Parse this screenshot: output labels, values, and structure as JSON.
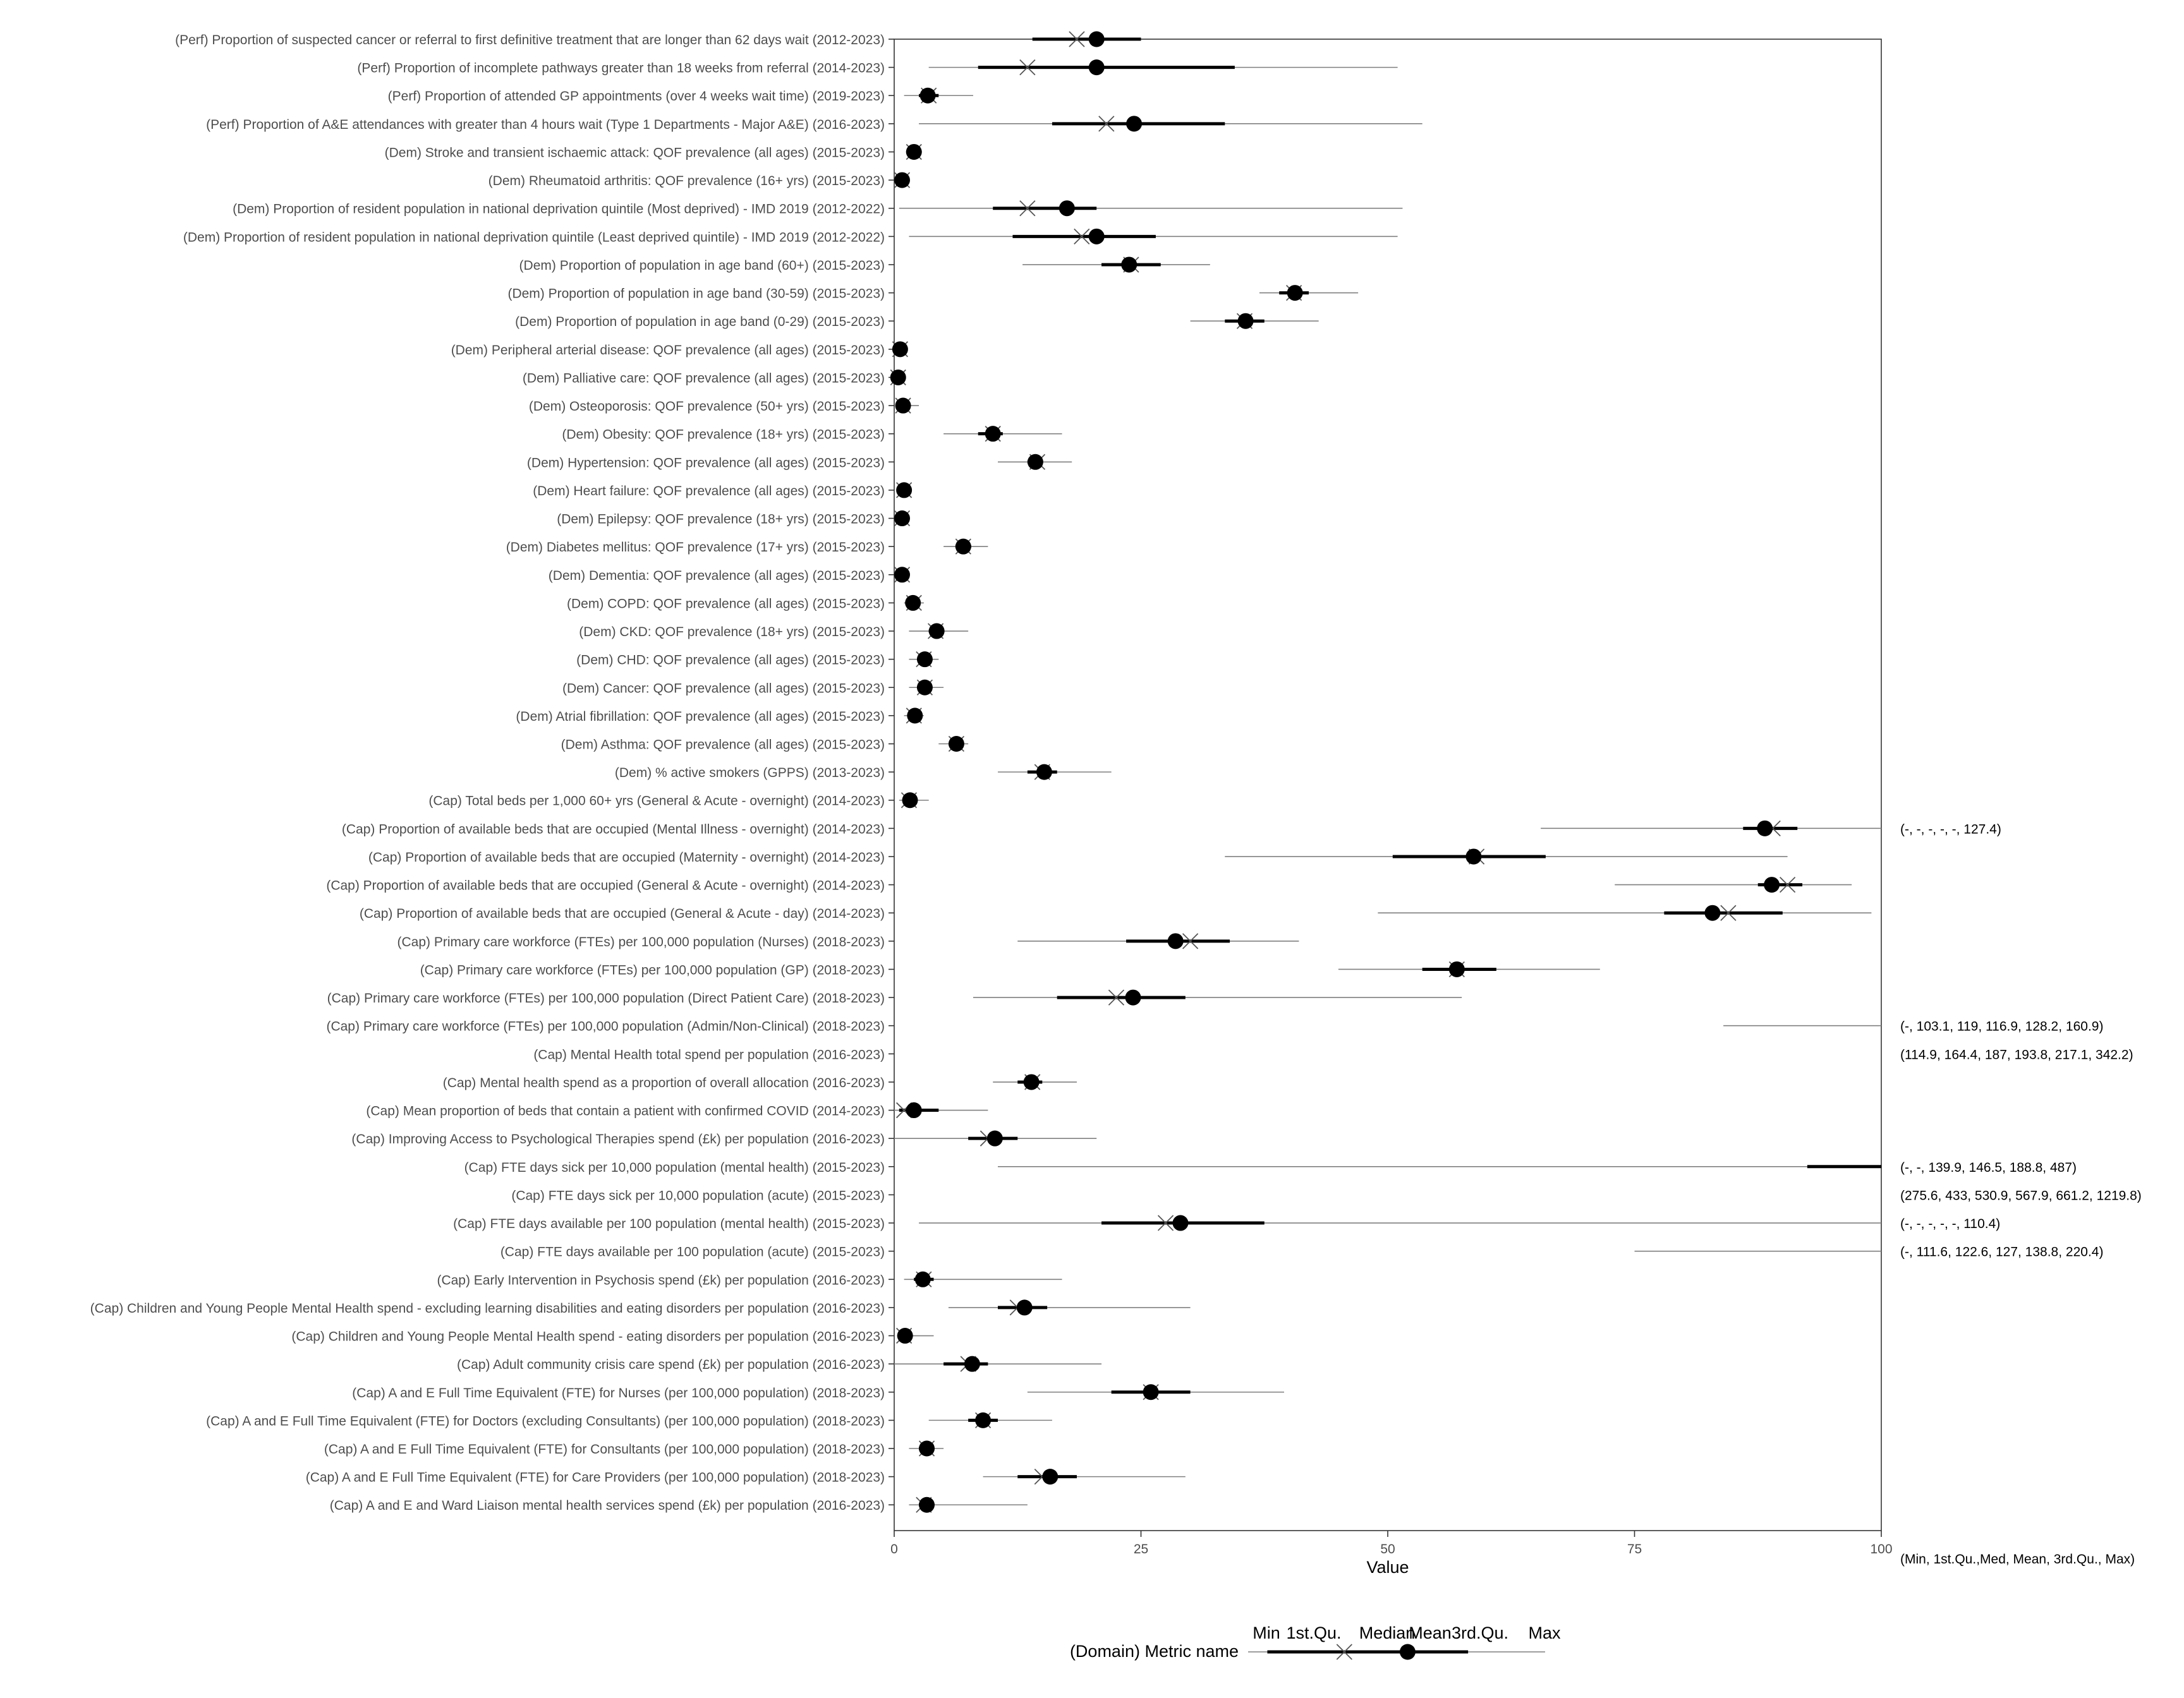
{
  "chart_data": {
    "type": "boxplot-summary",
    "title": "",
    "xlabel": "Value",
    "ylabel": "",
    "xlim": [
      0,
      100
    ],
    "x_ticks": [
      0,
      25,
      50,
      75,
      100
    ],
    "x_tick_labels": [
      "0",
      "25",
      "50",
      "75",
      "100"
    ],
    "summary_header": "(Min, 1st.Qu.,Med, Mean, 3rd.Qu., Max)",
    "grid": false,
    "legend": {
      "placement": "bottom",
      "title": "(Domain) Metric name",
      "labels": [
        "Min",
        "1st.Qu.",
        "Median",
        "Mean",
        "3rd.Qu.",
        "Max"
      ],
      "example": {
        "min": 0.4,
        "q1": 0.47,
        "med": 0.75,
        "mean": 0.98,
        "q3": 1.2,
        "max": 1.48
      }
    },
    "metrics": [
      {
        "label": "(Perf) Proportion of suspected cancer or referral to first definitive treatment that are longer than 62 days wait (2012-2023)",
        "min": 14,
        "q1": 14,
        "med": 18.5,
        "mean": 20.5,
        "q3": 25,
        "max": 25
      },
      {
        "label": "(Perf) Proportion of incomplete pathways greater than 18 weeks from referral (2014-2023)",
        "min": 3.5,
        "q1": 8.5,
        "med": 13.5,
        "mean": 20.5,
        "q3": 34.5,
        "max": 51
      },
      {
        "label": "(Perf) Proportion of attended GP appointments (over 4 weeks wait time) (2019-2023)",
        "min": 1,
        "q1": 2.5,
        "med": 3.5,
        "mean": 3.4,
        "q3": 4.5,
        "max": 8
      },
      {
        "label": "(Perf) Proportion of A&E attendances with greater than 4 hours wait (Type 1 Departments - Major A&E) (2016-2023)",
        "min": 2.5,
        "q1": 16,
        "med": 21.5,
        "mean": 24.3,
        "q3": 33.5,
        "max": 53.5
      },
      {
        "label": "(Dem) Stroke and transient ischaemic attack: QOF prevalence (all ages) (2015-2023)",
        "min": 1.2,
        "q1": 1.7,
        "med": 2,
        "mean": 2,
        "q3": 2.3,
        "max": 2.8
      },
      {
        "label": "(Dem) Rheumatoid arthritis: QOF prevalence (16+ yrs) (2015-2023)",
        "min": 0.5,
        "q1": 0.7,
        "med": 0.8,
        "mean": 0.8,
        "q3": 0.9,
        "max": 1.1
      },
      {
        "label": "(Dem) Proportion of resident population in national deprivation quintile (Most deprived) - IMD 2019 (2012-2022)",
        "min": 0.5,
        "q1": 10,
        "med": 13.5,
        "mean": 17.5,
        "q3": 20.5,
        "max": 51.5
      },
      {
        "label": "(Dem) Proportion of resident population in national deprivation quintile (Least deprived quintile) - IMD 2019 (2012-2022)",
        "min": 1.5,
        "q1": 12,
        "med": 19,
        "mean": 20.5,
        "q3": 26.5,
        "max": 51
      },
      {
        "label": "(Dem) Proportion of population in age band (60+) (2015-2023)",
        "min": 13,
        "q1": 21,
        "med": 24,
        "mean": 23.8,
        "q3": 27,
        "max": 32
      },
      {
        "label": "(Dem) Proportion of population in age band (30-59) (2015-2023)",
        "min": 37,
        "q1": 39,
        "med": 40.5,
        "mean": 40.6,
        "q3": 42,
        "max": 47
      },
      {
        "label": "(Dem) Proportion of population in age band (0-29) (2015-2023)",
        "min": 30,
        "q1": 33.5,
        "med": 35.5,
        "mean": 35.6,
        "q3": 37.5,
        "max": 43
      },
      {
        "label": "(Dem) Peripheral arterial disease: QOF prevalence (all ages) (2015-2023)",
        "min": 0.2,
        "q1": 0.5,
        "med": 0.6,
        "mean": 0.6,
        "q3": 0.8,
        "max": 1
      },
      {
        "label": "(Dem) Palliative care: QOF prevalence (all ages) (2015-2023)",
        "min": 0.1,
        "q1": 0.3,
        "med": 0.4,
        "mean": 0.4,
        "q3": 0.5,
        "max": 0.8
      },
      {
        "label": "(Dem) Osteoporosis: QOF prevalence (50+ yrs) (2015-2023)",
        "min": 0.2,
        "q1": 0.6,
        "med": 0.9,
        "mean": 0.9,
        "q3": 1.2,
        "max": 2.5
      },
      {
        "label": "(Dem) Obesity: QOF prevalence (18+ yrs) (2015-2023)",
        "min": 5,
        "q1": 8.5,
        "med": 10,
        "mean": 10,
        "q3": 11,
        "max": 17
      },
      {
        "label": "(Dem) Hypertension: QOF prevalence (all ages) (2015-2023)",
        "min": 10.5,
        "q1": 13.5,
        "med": 14.5,
        "mean": 14.3,
        "q3": 15,
        "max": 18
      },
      {
        "label": "(Dem) Heart failure: QOF prevalence (all ages) (2015-2023)",
        "min": 0.5,
        "q1": 0.8,
        "med": 1,
        "mean": 1,
        "q3": 1.2,
        "max": 1.6
      },
      {
        "label": "(Dem) Epilepsy: QOF prevalence (18+ yrs) (2015-2023)",
        "min": 0.5,
        "q1": 0.7,
        "med": 0.8,
        "mean": 0.8,
        "q3": 0.9,
        "max": 1.1
      },
      {
        "label": "(Dem) Diabetes mellitus: QOF prevalence (17+ yrs) (2015-2023)",
        "min": 5,
        "q1": 6.2,
        "med": 7,
        "mean": 7,
        "q3": 7.8,
        "max": 9.5
      },
      {
        "label": "(Dem) Dementia: QOF prevalence (all ages) (2015-2023)",
        "min": 0.4,
        "q1": 0.6,
        "med": 0.8,
        "mean": 0.8,
        "q3": 0.9,
        "max": 1.2
      },
      {
        "label": "(Dem) COPD: QOF prevalence (all ages) (2015-2023)",
        "min": 1,
        "q1": 1.5,
        "med": 2,
        "mean": 1.9,
        "q3": 2.3,
        "max": 3
      },
      {
        "label": "(Dem) CKD: QOF prevalence (18+ yrs) (2015-2023)",
        "min": 1.5,
        "q1": 3.5,
        "med": 4.2,
        "mean": 4.3,
        "q3": 5,
        "max": 7.5
      },
      {
        "label": "(Dem) CHD: QOF prevalence (all ages) (2015-2023)",
        "min": 1.5,
        "q1": 2.5,
        "med": 3,
        "mean": 3.1,
        "q3": 3.6,
        "max": 4.5
      },
      {
        "label": "(Dem) Cancer: QOF prevalence (all ages) (2015-2023)",
        "min": 1.5,
        "q1": 2.5,
        "med": 3.1,
        "mean": 3.1,
        "q3": 3.7,
        "max": 5
      },
      {
        "label": "(Dem) Atrial fibrillation: QOF prevalence (all ages) (2015-2023)",
        "min": 1,
        "q1": 1.6,
        "med": 2,
        "mean": 2.1,
        "q3": 2.4,
        "max": 3
      },
      {
        "label": "(Dem) Asthma: QOF prevalence (all ages) (2015-2023)",
        "min": 4.5,
        "q1": 5.8,
        "med": 6.3,
        "mean": 6.3,
        "q3": 6.8,
        "max": 7.5
      },
      {
        "label": "(Dem) % active smokers (GPPS) (2013-2023)",
        "min": 10.5,
        "q1": 13.5,
        "med": 15,
        "mean": 15.2,
        "q3": 16.5,
        "max": 22
      },
      {
        "label": "(Cap) Total beds per 1,000 60+ yrs (General & Acute - overnight) (2014-2023)",
        "min": 0.5,
        "q1": 1,
        "med": 1.5,
        "mean": 1.6,
        "q3": 2,
        "max": 3.5
      },
      {
        "label": "(Cap) Proportion of available beds that are occupied (Mental Illness - overnight) (2014-2023)",
        "min": 65.5,
        "q1": 86,
        "med": 89,
        "mean": 88.2,
        "q3": 91.5,
        "max": 100,
        "overflow_text": "(-, -, -, -, -, 127.4)"
      },
      {
        "label": "(Cap) Proportion of available beds that are occupied (Maternity - overnight) (2014-2023)",
        "min": 33.5,
        "q1": 50.5,
        "med": 59,
        "mean": 58.7,
        "q3": 66,
        "max": 90.5
      },
      {
        "label": "(Cap) Proportion of available beds that are occupied (General & Acute - overnight) (2014-2023)",
        "min": 73,
        "q1": 87.5,
        "med": 90.5,
        "mean": 88.9,
        "q3": 92,
        "max": 97
      },
      {
        "label": "(Cap) Proportion of available beds that are occupied (General & Acute - day) (2014-2023)",
        "min": 49,
        "q1": 78,
        "med": 84.5,
        "mean": 82.9,
        "q3": 90,
        "max": 99
      },
      {
        "label": "(Cap) Primary care workforce (FTEs) per 100,000 population (Nurses) (2018-2023)",
        "min": 12.5,
        "q1": 23.5,
        "med": 30,
        "mean": 28.5,
        "q3": 34,
        "max": 41
      },
      {
        "label": "(Cap) Primary care workforce (FTEs) per 100,000 population (GP) (2018-2023)",
        "min": 45,
        "q1": 53.5,
        "med": 57,
        "mean": 57,
        "q3": 61,
        "max": 71.5
      },
      {
        "label": "(Cap) Primary care workforce (FTEs) per 100,000 population (Direct Patient Care) (2018-2023)",
        "min": 8,
        "q1": 16.5,
        "med": 22.5,
        "mean": 24.2,
        "q3": 29.5,
        "max": 57.5
      },
      {
        "label": "(Cap) Primary care workforce (FTEs) per 100,000 population (Admin/Non-Clinical) (2018-2023)",
        "min": 84,
        "q1": null,
        "med": null,
        "mean": null,
        "q3": null,
        "max": 100,
        "overflow_text": "(-, 103.1, 119, 116.9, 128.2, 160.9)"
      },
      {
        "label": "(Cap) Mental Health total spend per population (2016-2023)",
        "min": null,
        "q1": null,
        "med": null,
        "mean": null,
        "q3": null,
        "max": null,
        "overflow_text": "(114.9, 164.4, 187, 193.8, 217.1, 342.2)"
      },
      {
        "label": "(Cap) Mental health spend as a proportion of overall allocation (2016-2023)",
        "min": 10,
        "q1": 12.5,
        "med": 14,
        "mean": 13.9,
        "q3": 15,
        "max": 18.5
      },
      {
        "label": "(Cap) Mean proportion of beds that contain a patient with confirmed COVID (2014-2023)",
        "min": 0,
        "q1": 0.5,
        "med": 1,
        "mean": 2,
        "q3": 4.5,
        "max": 9.5
      },
      {
        "label": "(Cap) Improving Access to Psychological Therapies spend (£k) per population (2016-2023)",
        "min": 0,
        "q1": 7.5,
        "med": 9.5,
        "mean": 10.2,
        "q3": 12.5,
        "max": 20.5
      },
      {
        "label": "(Cap) FTE days sick per 10,000 population (mental health) (2015-2023)",
        "min": 10.5,
        "q1": 92.5,
        "med": null,
        "mean": null,
        "q3": 100,
        "max": 100,
        "overflow_text": "(-, -, 139.9, 146.5, 188.8, 487)"
      },
      {
        "label": "(Cap) FTE days sick per 10,000 population (acute) (2015-2023)",
        "min": null,
        "q1": null,
        "med": null,
        "mean": null,
        "q3": null,
        "max": null,
        "overflow_text": "(275.6, 433, 530.9, 567.9, 661.2, 1219.8)"
      },
      {
        "label": "(Cap) FTE days available per 100 population (mental health) (2015-2023)",
        "min": 2.5,
        "q1": 21,
        "med": 27.5,
        "mean": 29,
        "q3": 37.5,
        "max": 100,
        "overflow_text": "(-, -, -, -, -, 110.4)"
      },
      {
        "label": "(Cap) FTE days available per 100 population (acute) (2015-2023)",
        "min": 75,
        "q1": null,
        "med": null,
        "mean": null,
        "q3": null,
        "max": 100,
        "overflow_text": "(-, 111.6, 122.6, 127, 138.8, 220.4)"
      },
      {
        "label": "(Cap) Early Intervention in Psychosis spend (£k) per population (2016-2023)",
        "min": 1,
        "q1": 2,
        "med": 3,
        "mean": 2.9,
        "q3": 4,
        "max": 17
      },
      {
        "label": "(Cap) Children and Young People Mental Health spend - excluding learning disabilities and eating disorders per population (2016-2023)",
        "min": 5.5,
        "q1": 10.5,
        "med": 12.5,
        "mean": 13.2,
        "q3": 15.5,
        "max": 30
      },
      {
        "label": "(Cap) Children and Young People Mental Health spend - eating disorders per population (2016-2023)",
        "min": 0.3,
        "q1": 0.7,
        "med": 1,
        "mean": 1.1,
        "q3": 1.5,
        "max": 4
      },
      {
        "label": "(Cap) Adult community crisis care spend (£k) per population (2016-2023)",
        "min": 0,
        "q1": 5,
        "med": 7.5,
        "mean": 7.9,
        "q3": 9.5,
        "max": 21
      },
      {
        "label": "(Cap) A and E Full Time Equivalent (FTE) for Nurses (per 100,000 population) (2018-2023)",
        "min": 13.5,
        "q1": 22,
        "med": 26,
        "mean": 26,
        "q3": 30,
        "max": 39.5
      },
      {
        "label": "(Cap) A and E Full Time Equivalent (FTE) for Doctors (excluding Consultants) (per 100,000 population) (2018-2023)",
        "min": 3.5,
        "q1": 7.5,
        "med": 9,
        "mean": 9,
        "q3": 10.5,
        "max": 16
      },
      {
        "label": "(Cap) A and E Full Time Equivalent (FTE) for Consultants (per 100,000 population) (2018-2023)",
        "min": 1.5,
        "q1": 2.5,
        "med": 3.3,
        "mean": 3.3,
        "q3": 4,
        "max": 5
      },
      {
        "label": "(Cap) A and E Full Time Equivalent (FTE) for Care Providers (per 100,000 population) (2018-2023)",
        "min": 9,
        "q1": 12.5,
        "med": 15,
        "mean": 15.8,
        "q3": 18.5,
        "max": 29.5
      },
      {
        "label": "(Cap) A and E and Ward Liaison mental health services spend (£k) per population (2016-2023)",
        "min": 1.5,
        "q1": 2.5,
        "med": 3,
        "mean": 3.3,
        "q3": 4,
        "max": 13.5
      }
    ]
  }
}
